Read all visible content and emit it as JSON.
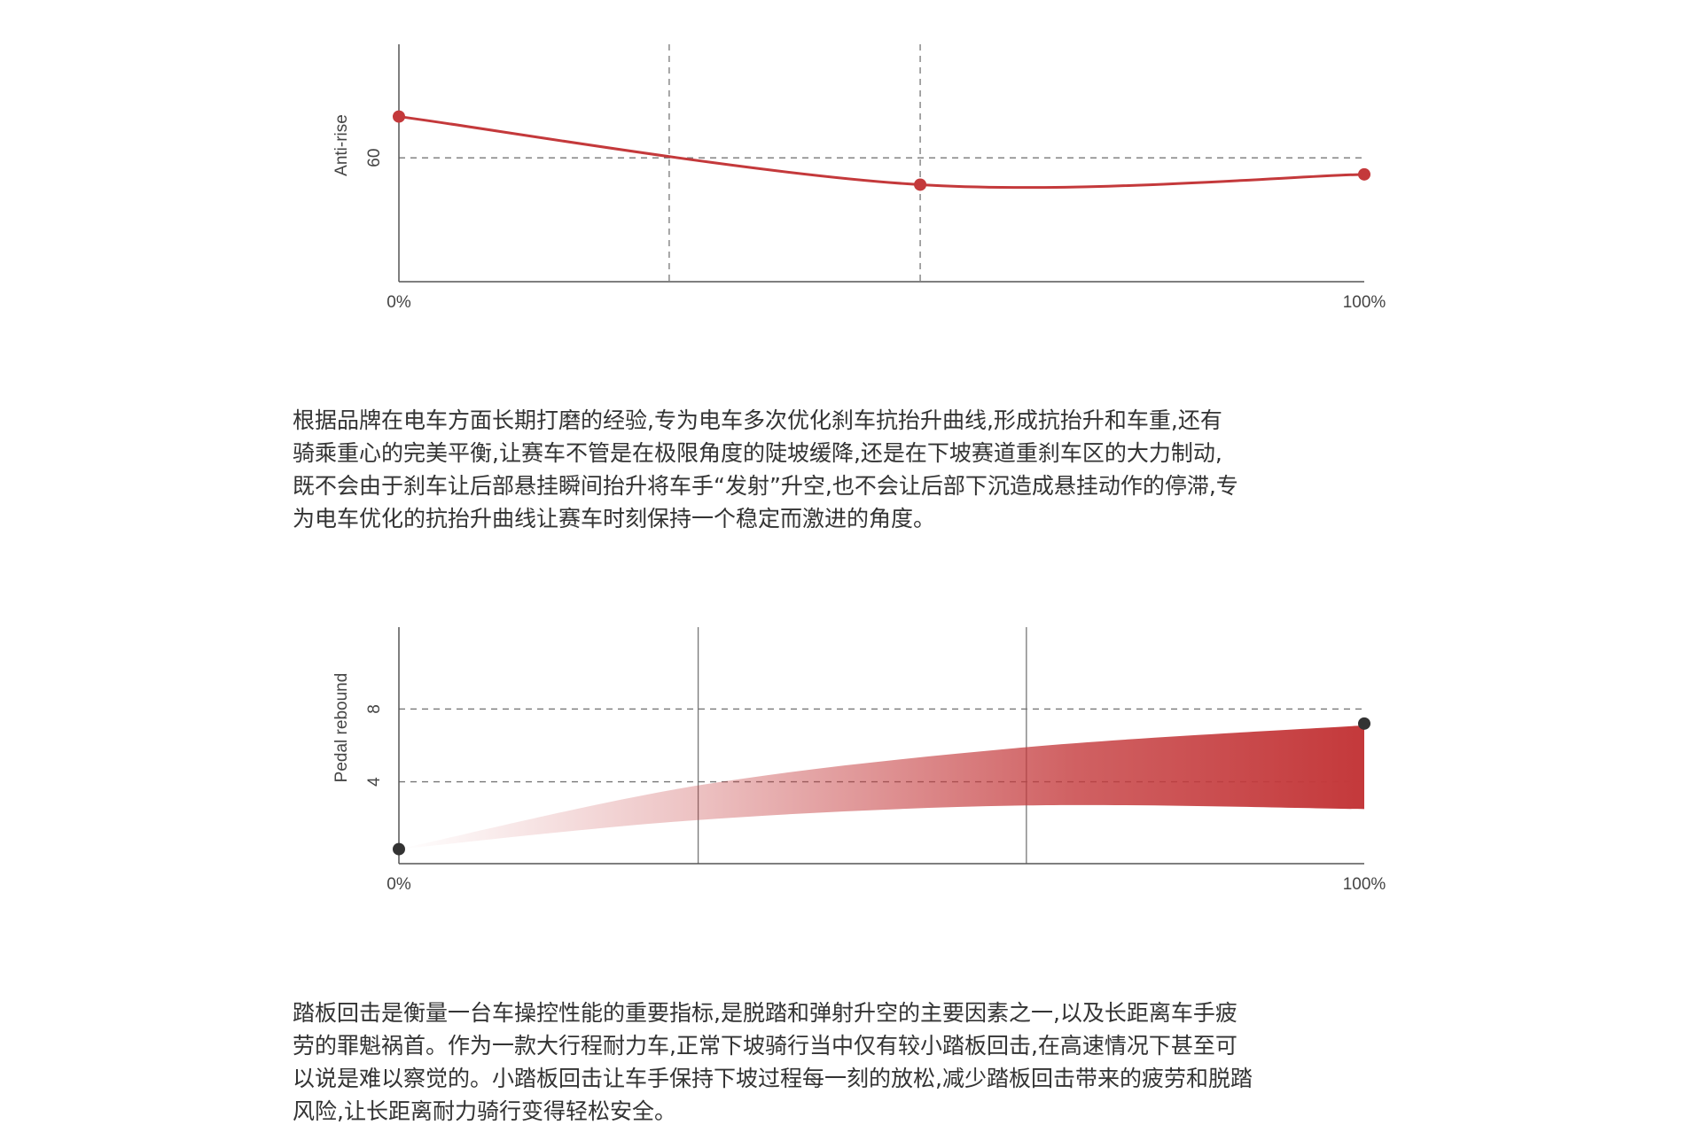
{
  "chart_data": [
    {
      "type": "line",
      "y_label": "Anti-rise",
      "color": "#c4393b",
      "x": [
        0,
        54,
        100
      ],
      "values": [
        80,
        47,
        52
      ],
      "xlim": [
        0,
        100
      ],
      "xticks": [
        {
          "value": 0,
          "label": "0%"
        },
        {
          "value": 100,
          "label": "100%"
        }
      ],
      "ylim": [
        0,
        115
      ],
      "yticks": [
        60
      ],
      "grid": true,
      "grid_style": "dashed",
      "vlines": [
        28,
        54
      ],
      "vline_style": "dashed"
    },
    {
      "type": "band",
      "y_label": "Pedal rebound",
      "color": "#c4393b",
      "x": [
        0,
        31,
        65,
        100
      ],
      "upper": [
        0.3,
        3.8,
        5.9,
        7.1
      ],
      "lower": [
        0.3,
        1.9,
        2.7,
        2.5
      ],
      "points": {
        "x": [
          0,
          100
        ],
        "values": [
          0.3,
          7.2
        ],
        "color": "#333333"
      },
      "xlim": [
        0,
        100
      ],
      "xticks": [
        {
          "value": 0,
          "label": "0%"
        },
        {
          "value": 100,
          "label": "100%"
        }
      ],
      "ylim": [
        -0.5,
        12.5
      ],
      "yticks": [
        4,
        8
      ],
      "grid": true,
      "grid_style": "dashed",
      "vlines": [
        31,
        65
      ],
      "vline_style": "solid"
    }
  ],
  "paragraphs": [
    [
      "根据品牌在电车方面长期打磨的经验,专为电车多次优化刹车抗抬升曲线,形成抗抬升和车重,还有",
      "骑乘重心的完美平衡,让赛车不管是在极限角度的陡坡缓降,还是在下坡赛道重刹车区的大力制动,",
      "既不会由于刹车让后部悬挂瞬间抬升将车手“发射”升空,也不会让后部下沉造成悬挂动作的停滞,专",
      "为电车优化的抗抬升曲线让赛车时刻保持一个稳定而激进的角度。"
    ],
    [
      "踏板回击是衡量一台车操控性能的重要指标,是脱踏和弹射升空的主要因素之一,以及长距离车手疲",
      "劳的罪魁祸首。作为一款大行程耐力车,正常下坡骑行当中仅有较小踏板回击,在高速情况下甚至可",
      "以说是难以察觉的。小踏板回击让车手保持下坡过程每一刻的放松,减少踏板回击带来的疲劳和脱踏",
      "风险,让长距离耐力骑行变得轻松安全。"
    ]
  ]
}
